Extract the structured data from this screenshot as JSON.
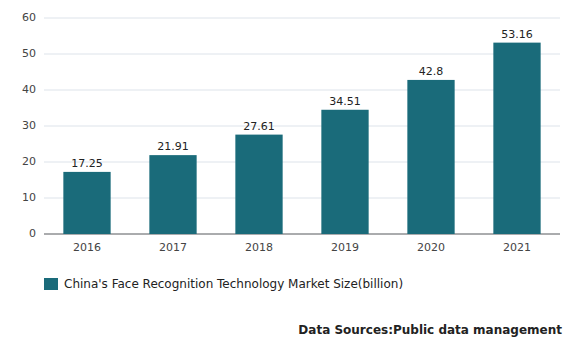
{
  "chart_data": {
    "type": "bar",
    "categories": [
      "2016",
      "2017",
      "2018",
      "2019",
      "2020",
      "2021"
    ],
    "series": [
      {
        "name": "China's Face Recognition Technology Market Size(billion)",
        "color": "#1a6b7a",
        "values": [
          17.25,
          21.91,
          27.61,
          34.51,
          42.8,
          53.16
        ]
      }
    ],
    "ylim": [
      0,
      60
    ],
    "yticks": [
      0,
      10,
      20,
      30,
      40,
      50,
      60
    ],
    "grid": true,
    "data_labels": true,
    "legend": "bottom",
    "annotations": [
      "Data Sources:Public data management"
    ]
  }
}
